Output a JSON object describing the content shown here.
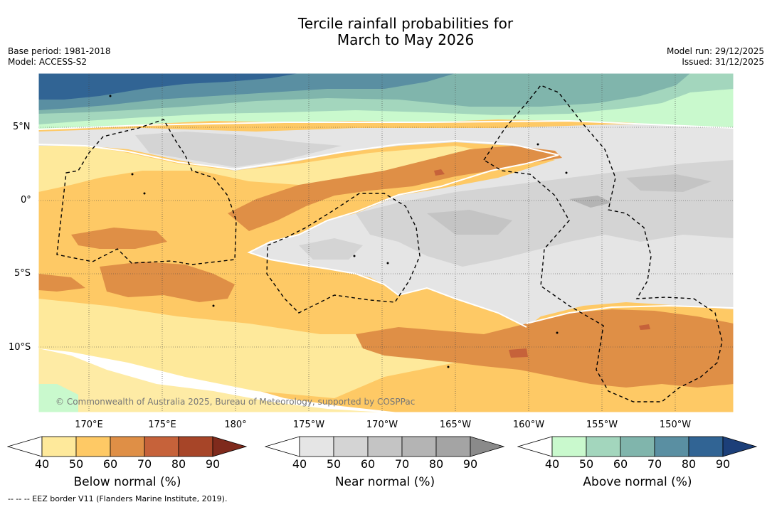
{
  "title_line1": "Tercile rainfall probabilities for",
  "title_line2": "March to May 2026",
  "meta_left": {
    "base_period": "Base period: 1981-2018",
    "model": "Model: ACCESS-S2"
  },
  "meta_right": {
    "model_run": "Model run: 29/12/2025",
    "issued": "Issued: 31/12/2025"
  },
  "lat_labels": [
    "5°N",
    "0°",
    "5°S",
    "10°S"
  ],
  "lon_labels": [
    "170°E",
    "175°E",
    "180°",
    "175°W",
    "170°W",
    "165°W",
    "160°W",
    "155°W",
    "150°W"
  ],
  "credit": "© Commonwealth of Australia 2025, Bureau of Meteorology, supported by COSPPac",
  "colorbars": [
    {
      "title": "Below normal (%)",
      "ticks": [
        "40",
        "50",
        "60",
        "70",
        "80",
        "90"
      ],
      "colors": [
        "#ffffff",
        "#fee99b",
        "#fec965",
        "#df8f46",
        "#c6623a",
        "#a74528",
        "#7f2a1c"
      ]
    },
    {
      "title": "Near normal (%)",
      "ticks": [
        "40",
        "50",
        "60",
        "70",
        "80",
        "90"
      ],
      "colors": [
        "#ffffff",
        "#e5e5e5",
        "#d4d4d4",
        "#c4c4c4",
        "#b4b4b4",
        "#a4a4a4",
        "#8a8a8a"
      ]
    },
    {
      "title": "Above normal (%)",
      "ticks": [
        "40",
        "50",
        "60",
        "70",
        "80",
        "90"
      ],
      "colors": [
        "#ffffff",
        "#c9f9cd",
        "#a3d6bd",
        "#80b5ac",
        "#5a8fa2",
        "#316494",
        "#1c3f79"
      ]
    }
  ],
  "footer": "--  --  -- EEZ border V11 (Flanders Marine Institute, 2019)."
}
